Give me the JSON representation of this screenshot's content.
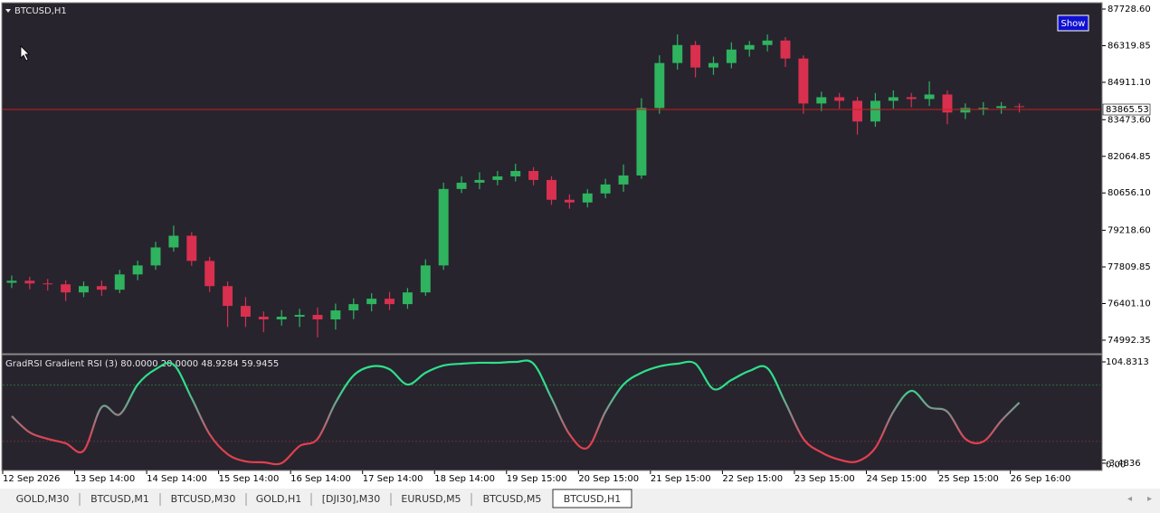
{
  "window": {
    "symbol": "BTCUSD,H1",
    "button": "Show",
    "tabs": [
      "GOLD,M30",
      "BTCUSD,M1",
      "BTCUSD,M30",
      "GOLD,H1",
      "[DJI30],M30",
      "EURUSD,M5",
      "BTCUSD,M5",
      "BTCUSD,H1"
    ],
    "active_tab": 7
  },
  "chart_data": [
    {
      "type": "candlestick",
      "up_color": "#2fb35f",
      "down_color": "#d8304e",
      "bid": 83865.53,
      "bid_color": "#c81e1e",
      "open": [
        77200,
        77279,
        77176,
        77141,
        76830,
        77072,
        76934,
        77522,
        77868,
        78560,
        79010,
        78041,
        77072,
        76311,
        75896,
        75792,
        75896,
        75965,
        75792,
        76138,
        76380,
        76588,
        76380,
        76830,
        77868,
        80809,
        81051,
        81155,
        81293,
        81501,
        81155,
        80394,
        80290,
        80636,
        80982,
        81328,
        83923,
        85653,
        86345,
        85480,
        85653,
        86172,
        86345,
        86518,
        85826,
        84096,
        84338,
        84200,
        83404,
        84200,
        84338,
        84269,
        84442,
        83750,
        83923,
        83923,
        83992
      ],
      "high": [
        77480,
        77430,
        77350,
        77300,
        77250,
        77280,
        77700,
        78050,
        78780,
        79400,
        79150,
        78200,
        77250,
        76650,
        76100,
        76150,
        76200,
        76250,
        76400,
        76600,
        76800,
        76850,
        77000,
        78100,
        81050,
        81300,
        81450,
        81500,
        81780,
        81650,
        81300,
        80600,
        80800,
        81200,
        81750,
        84300,
        85950,
        86750,
        86500,
        85900,
        86450,
        86500,
        86750,
        86650,
        85950,
        84550,
        84500,
        84350,
        84500,
        84600,
        84500,
        84950,
        84600,
        84100,
        84150,
        84150,
        84100
      ],
      "low": [
        77000,
        76950,
        76900,
        76500,
        76650,
        76700,
        76800,
        77300,
        77700,
        78400,
        77850,
        76850,
        75500,
        75500,
        75300,
        75550,
        75500,
        75100,
        75400,
        75800,
        76100,
        76150,
        76200,
        76700,
        77700,
        80650,
        80800,
        80950,
        81100,
        80950,
        80200,
        80050,
        80100,
        80450,
        80700,
        81200,
        83700,
        85400,
        85100,
        85200,
        85450,
        85900,
        86100,
        85500,
        83700,
        83800,
        83900,
        82900,
        83200,
        83900,
        83950,
        84000,
        83300,
        83500,
        83650,
        83700,
        83750
      ],
      "close": [
        77279,
        77176,
        77141,
        76830,
        77072,
        76934,
        77522,
        77868,
        78560,
        79010,
        78041,
        77072,
        76311,
        75896,
        75792,
        75896,
        75965,
        75792,
        76138,
        76380,
        76588,
        76380,
        76830,
        77868,
        80809,
        81051,
        81155,
        81293,
        81501,
        81155,
        80394,
        80290,
        80636,
        80982,
        81328,
        83923,
        85653,
        86345,
        85480,
        85653,
        86172,
        86345,
        86518,
        85826,
        84096,
        84338,
        84200,
        83404,
        84200,
        84338,
        84269,
        84442,
        83750,
        83923,
        83923,
        83992,
        83958
      ],
      "xlim": [
        0,
        61
      ],
      "ylim": [
        74505,
        87903
      ],
      "xticks": [
        {
          "value": 0,
          "label": "12 Sep 2026"
        },
        {
          "value": 4,
          "label": "13 Sep 14:00"
        },
        {
          "value": 8,
          "label": "14 Sep 14:00"
        },
        {
          "value": 12,
          "label": "15 Sep 14:00"
        },
        {
          "value": 16,
          "label": "16 Sep 14:00"
        },
        {
          "value": 20,
          "label": "17 Sep 14:00"
        },
        {
          "value": 24,
          "label": "18 Sep 14:00"
        },
        {
          "value": 28,
          "label": "19 Sep 15:00"
        },
        {
          "value": 32,
          "label": "20 Sep 15:00"
        },
        {
          "value": 36,
          "label": "21 Sep 15:00"
        },
        {
          "value": 40,
          "label": "22 Sep 15:00"
        },
        {
          "value": 44,
          "label": "23 Sep 15:00"
        },
        {
          "value": 48,
          "label": "24 Sep 15:00"
        },
        {
          "value": 52,
          "label": "25 Sep 15:00"
        },
        {
          "value": 56,
          "label": "26 Sep 16:00"
        }
      ],
      "yticks": [
        {
          "value": 87728.6,
          "label": "87728.60"
        },
        86319.85,
        {
          "value": 84911.1,
          "label": "84911.10"
        },
        {
          "value": 83473.6,
          "label": "83473.60"
        },
        82064.85,
        {
          "value": 80656.1,
          "label": "80656.10"
        },
        {
          "value": 79218.6,
          "label": "79218.60"
        },
        77809.85,
        {
          "value": 76401.1,
          "label": "76401.10"
        },
        74992.35
      ]
    },
    {
      "type": "line",
      "title": "GradRSI Gradient RSI (3) 80.0000 20.0000 48.9284 59.9455",
      "values": [
        46.8,
        29.4,
        22.6,
        17.8,
        10,
        56.5,
        48.7,
        80.6,
        97,
        101.9,
        66.1,
        27.5,
        6.2,
        -1.5,
        -2.5,
        -3.4,
        14.9,
        22.6,
        61.3,
        90.3,
        100,
        97,
        80.6,
        93.2,
        101,
        102.9,
        103.9,
        103.9,
        104.8,
        102.9,
        66.1,
        27.5,
        13,
        51.6,
        80.6,
        93.2,
        100,
        102.9,
        102.9,
        75.8,
        85.5,
        95.2,
        98.1,
        61.3,
        22.6,
        8.1,
        0.3,
        -1.5,
        13,
        51.6,
        73.9,
        56.5,
        51.6,
        22.6,
        19.7,
        42,
        61.3
      ],
      "levels": [
        80,
        20
      ],
      "high_color": "#2ee08a",
      "mid_color": "#8a8a8a",
      "low_color": "#e0404e",
      "xlim": [
        0,
        61
      ],
      "ylim": [
        -9.3,
        111.6
      ],
      "yticks": [
        104.8313,
        {
          "value": 0,
          "label": "0.00"
        },
        -3.4836
      ]
    }
  ]
}
